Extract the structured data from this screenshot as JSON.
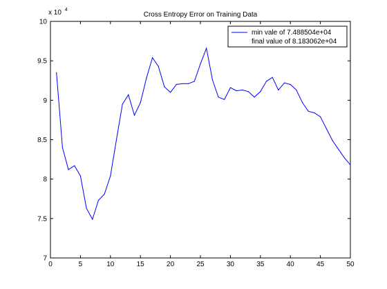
{
  "chart_data": {
    "type": "line",
    "title": "Cross Entropy Error on Training Data",
    "xlabel": "",
    "ylabel": "",
    "y_multiplier_base": "x 10",
    "y_multiplier_exponent": "4",
    "xlim": [
      0,
      50
    ],
    "ylim": [
      7,
      10
    ],
    "x_ticks": [
      0,
      5,
      10,
      15,
      20,
      25,
      30,
      35,
      40,
      45,
      50
    ],
    "x_tick_labels": [
      "0",
      "5",
      "10",
      "15",
      "20",
      "25",
      "30",
      "35",
      "40",
      "45",
      "50"
    ],
    "y_ticks": [
      7,
      7.5,
      8,
      8.5,
      9,
      9.5,
      10
    ],
    "y_tick_labels": [
      "7",
      "7.5",
      "8",
      "8.5",
      "9",
      "9.5",
      "10"
    ],
    "grid": false,
    "legend_position": "top-right",
    "legend": [
      "min vale of 7.488504e+04",
      "final value of 8.183062e+04"
    ],
    "line_color": "#0000ff",
    "series": [
      {
        "x": [
          1,
          2,
          3,
          4,
          5,
          6,
          7,
          8,
          9,
          10,
          11,
          12,
          13,
          14,
          15,
          16,
          17,
          18,
          19,
          20,
          21,
          22,
          23,
          24,
          25,
          26,
          27,
          28,
          29,
          30,
          31,
          32,
          33,
          34,
          35,
          36,
          37,
          38,
          39,
          40,
          41,
          42,
          43,
          44,
          45,
          46,
          47,
          48,
          49,
          50
        ],
        "values": [
          9.35,
          8.4,
          8.12,
          8.17,
          8.04,
          7.63,
          7.49,
          7.73,
          7.81,
          8.04,
          8.5,
          8.95,
          9.07,
          8.81,
          8.97,
          9.28,
          9.54,
          9.43,
          9.17,
          9.1,
          9.2,
          9.21,
          9.21,
          9.24,
          9.46,
          9.66,
          9.26,
          9.04,
          9.01,
          9.16,
          9.12,
          9.13,
          9.11,
          9.04,
          9.11,
          9.24,
          9.29,
          9.13,
          9.22,
          9.2,
          9.13,
          8.97,
          8.86,
          8.84,
          8.79,
          8.64,
          8.49,
          8.38,
          8.27,
          8.18
        ]
      }
    ]
  }
}
